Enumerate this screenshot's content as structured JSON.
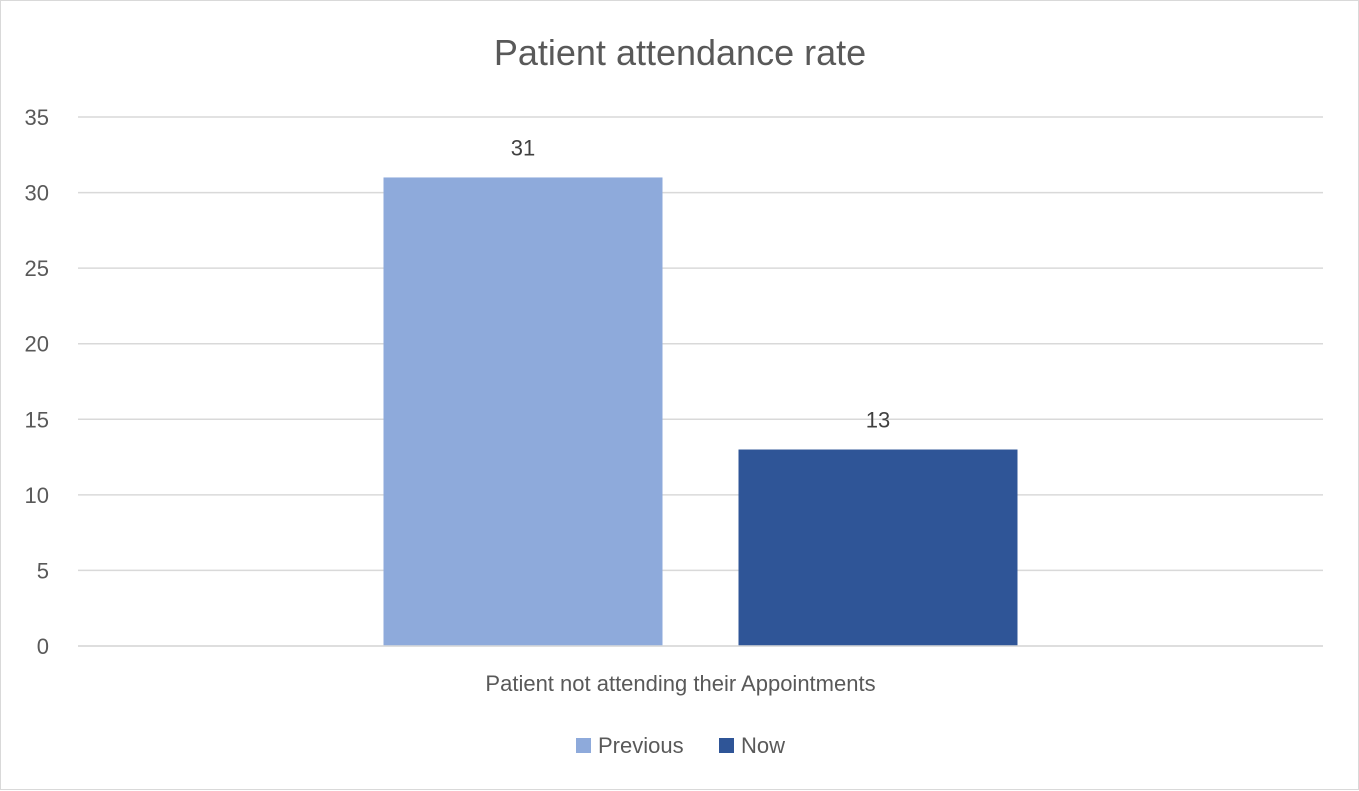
{
  "chart_data": {
    "type": "bar",
    "title": "Patient attendance rate",
    "categories": [
      "Patient not attending their Appointments"
    ],
    "series": [
      {
        "name": "Previous",
        "values": [
          31
        ],
        "color": "#8eaadb"
      },
      {
        "name": "Now",
        "values": [
          13
        ],
        "color": "#2f5597"
      }
    ],
    "ylim": [
      0,
      35
    ],
    "yticks": [
      0,
      5,
      10,
      15,
      20,
      25,
      30,
      35
    ],
    "data_labels": true,
    "grid": true,
    "legend_position": "bottom"
  }
}
